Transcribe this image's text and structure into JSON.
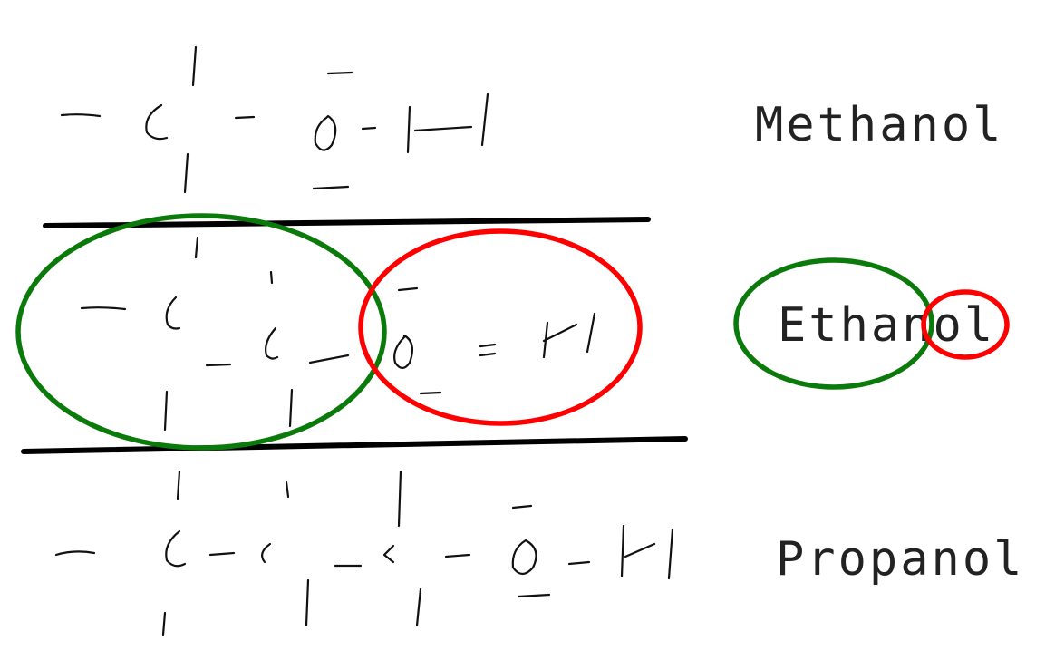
{
  "labels": {
    "methanol": "Methanol",
    "ethanol": "Ethanol",
    "propanol": "Propanol"
  },
  "colors": {
    "ink": "#111111",
    "divider": "#000000",
    "ethyl_group_circle": "#0a7a0a",
    "hydroxyl_group_circle": "#ff0000",
    "text": "#222222",
    "background": "#ffffff"
  }
}
